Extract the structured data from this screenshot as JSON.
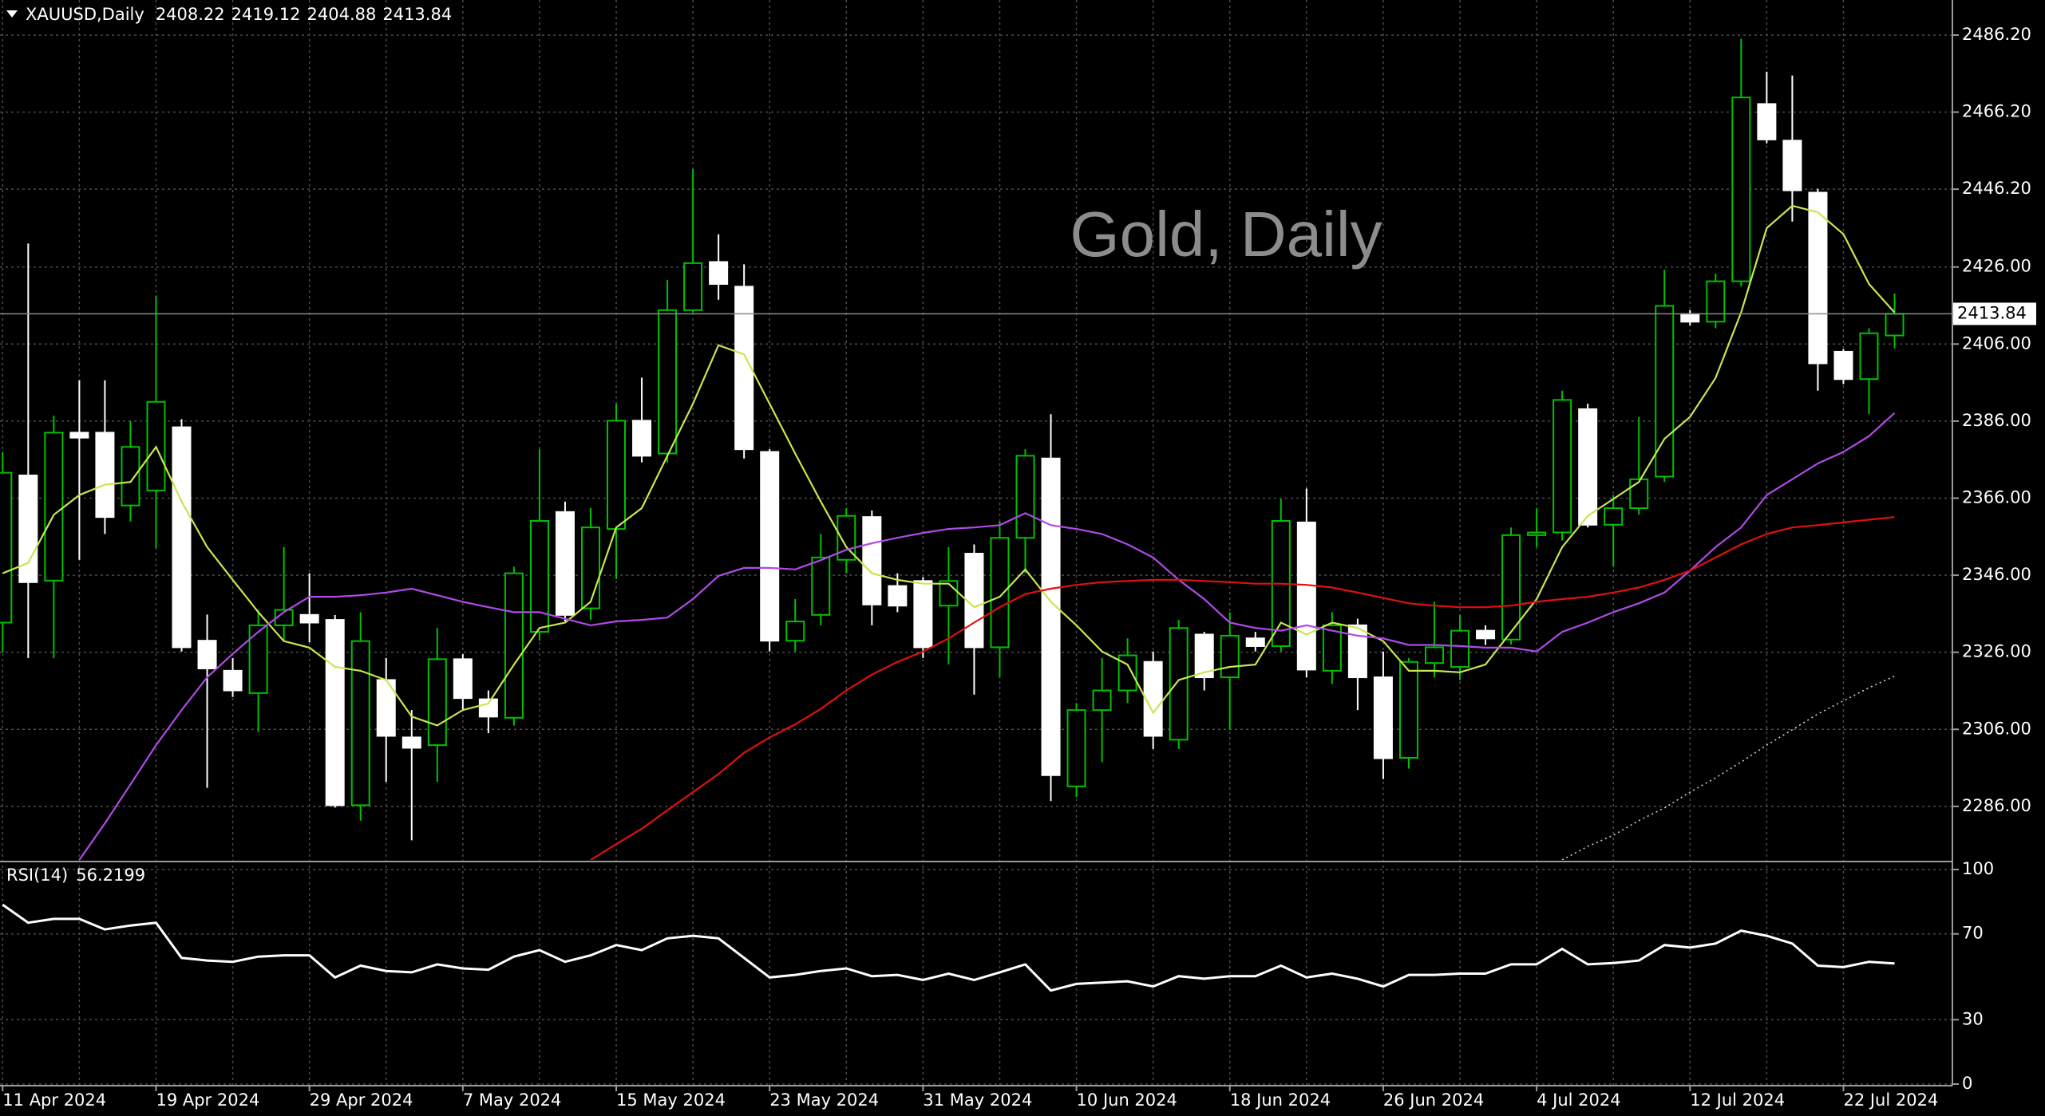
{
  "chart_data": [
    {
      "type": "candlestick",
      "symbol": "XAUUSD,Daily",
      "watermark": "Gold, Daily",
      "categories": [
        "11 Apr 2024",
        null,
        null,
        null,
        null,
        null,
        "19 Apr 2024",
        null,
        null,
        null,
        null,
        null,
        "29 Apr 2024",
        null,
        null,
        null,
        null,
        null,
        "7 May 2024",
        null,
        null,
        null,
        null,
        null,
        "15 May 2024",
        null,
        null,
        null,
        null,
        null,
        "23 May 2024",
        null,
        null,
        null,
        null,
        null,
        "31 May 2024",
        null,
        null,
        null,
        null,
        null,
        "10 Jun 2024",
        null,
        null,
        null,
        null,
        null,
        "18 Jun 2024",
        null,
        null,
        null,
        null,
        null,
        "26 Jun 2024",
        null,
        null,
        null,
        null,
        null,
        "4 Jul 2024",
        null,
        null,
        null,
        null,
        null,
        "12 Jul 2024",
        null,
        null,
        null,
        null,
        null,
        "22 Jul 2024",
        null,
        null
      ],
      "open": [
        2333.7,
        2371.9,
        2344.6,
        2383,
        2383,
        2364.1,
        2368,
        2384.4,
        2329,
        2321.2,
        2315.4,
        2333,
        2335.7,
        2334.4,
        2286.3,
        2318.8,
        2303.9,
        2301.9,
        2324.2,
        2313.8,
        2309,
        2331.3,
        2362.4,
        2337.4,
        2358,
        2386.1,
        2377.6,
        2414.8,
        2427.3,
        2420.9,
        2378,
        2329,
        2335.7,
        2350,
        2361.1,
        2343.2,
        2344.5,
        2338.1,
        2351.6,
        2327.3,
        2355.7,
        2376.3,
        2291.2,
        2311,
        2316.1,
        2323.5,
        2303.3,
        2330.6,
        2319.5,
        2329.6,
        2327.6,
        2359.7,
        2321.2,
        2333,
        2319.5,
        2298.6,
        2323.2,
        2322.2,
        2331.6,
        2329.3,
        2356.4,
        2357.1,
        2389.1,
        2359.1,
        2363.4,
        2371.6,
        2413.8,
        2411.8,
        2422.3,
        2468.3,
        2458.8,
        2445.3,
        2404,
        2396.9,
        2408.22
      ],
      "high": [
        2378,
        2432.1,
        2387.4,
        2396.6,
        2396.6,
        2386,
        2418.6,
        2386.5,
        2335.8,
        2324.5,
        2337,
        2353.3,
        2346.5,
        2335.7,
        2336.4,
        2324.5,
        2311,
        2332.3,
        2325.5,
        2316.1,
        2348.2,
        2378.7,
        2365.1,
        2363.4,
        2390.5,
        2397.3,
        2422.6,
        2451.4,
        2434.5,
        2426.7,
        2378.7,
        2339.8,
        2356.7,
        2363.4,
        2362.8,
        2346.5,
        2345.5,
        2353.3,
        2354,
        2360,
        2378.7,
        2387.8,
        2312.8,
        2324.5,
        2329.6,
        2326.2,
        2334.4,
        2331.3,
        2336.4,
        2331.3,
        2365.8,
        2368.5,
        2336.4,
        2334.7,
        2326.2,
        2324.5,
        2339.1,
        2335.7,
        2333,
        2358.4,
        2363.4,
        2393.9,
        2390.5,
        2366.8,
        2387.1,
        2425.3,
        2414.8,
        2424.3,
        2485.2,
        2476.7,
        2475.7,
        2446.3,
        2404.7,
        2410.1,
        2419.12
      ],
      "low": [
        2326,
        2324.5,
        2324.5,
        2350,
        2356.7,
        2360,
        2353,
        2326.2,
        2290.8,
        2314.4,
        2305.3,
        2329,
        2328.6,
        2285.7,
        2282.3,
        2292.4,
        2277.2,
        2292.4,
        2311,
        2305,
        2307,
        2329,
        2334,
        2334.4,
        2345,
        2375.3,
        2375.3,
        2414.2,
        2417.5,
        2376.3,
        2326.2,
        2326.2,
        2333,
        2346.5,
        2333,
        2336.4,
        2324.5,
        2322.9,
        2315,
        2319.5,
        2346.5,
        2287.4,
        2288.4,
        2297.5,
        2312.8,
        2300.9,
        2300.9,
        2316.1,
        2305.9,
        2326.2,
        2326.2,
        2319.5,
        2317.8,
        2311,
        2293.1,
        2295.8,
        2319.5,
        2318.8,
        2327.9,
        2328,
        2353.3,
        2355,
        2358.4,
        2348.2,
        2361.7,
        2370.2,
        2410.8,
        2410.1,
        2420.9,
        2458.1,
        2437.8,
        2393.9,
        2395.6,
        2387.8,
        2404.88
      ],
      "close": [
        2372.6,
        2344.2,
        2383,
        2381.7,
        2361.1,
        2379.3,
        2391,
        2327.3,
        2321.8,
        2316.1,
        2333,
        2337,
        2333.7,
        2286.3,
        2328.9,
        2304.3,
        2301.2,
        2324.2,
        2314.1,
        2309.3,
        2346.5,
        2360.1,
        2335.7,
        2358.4,
        2386.1,
        2377,
        2414.8,
        2427,
        2421.6,
        2378.7,
        2329,
        2334,
        2350.6,
        2361.4,
        2338.4,
        2338.1,
        2327.3,
        2344.5,
        2327.3,
        2355.7,
        2377,
        2294.1,
        2311,
        2316.1,
        2325.2,
        2304.3,
        2332.3,
        2319.5,
        2330.3,
        2327.6,
        2360.1,
        2321.5,
        2333,
        2319.5,
        2298.5,
        2323.5,
        2327.3,
        2331.6,
        2329.6,
        2356.4,
        2357.1,
        2391.5,
        2359.1,
        2363.4,
        2370.9,
        2415.9,
        2411.8,
        2422.3,
        2470,
        2459.1,
        2445.9,
        2401,
        2396.9,
        2408.8,
        2413.84
      ],
      "up_color": "#00c000",
      "down_color": "#ffffff",
      "ylim": [
        2272.1,
        2495.3
      ],
      "yticks": [
        {
          "value": 2286,
          "label": "2286.00"
        },
        {
          "value": 2306,
          "label": "2306.00"
        },
        {
          "value": 2326,
          "label": "2326.00"
        },
        {
          "value": 2346,
          "label": "2346.00"
        },
        {
          "value": 2366,
          "label": "2366.00"
        },
        {
          "value": 2386,
          "label": "2386.00"
        },
        {
          "value": 2406,
          "label": "2406.00"
        },
        {
          "value": 2426,
          "label": "2426.00"
        },
        {
          "value": 2446.2,
          "label": "2446.20"
        },
        {
          "value": 2466.2,
          "label": "2466.20"
        },
        {
          "value": 2486.2,
          "label": "2486.20"
        }
      ],
      "grid": true,
      "lines": [
        {
          "color": "#c8e650",
          "dashed": false,
          "values": [
            2346.5,
            2349.2,
            2361.7,
            2366.8,
            2369.5,
            2370.2,
            2379.3,
            2365.1,
            2353.3,
            2344.8,
            2336.4,
            2328.9,
            2327.2,
            2322.2,
            2321.2,
            2318.8,
            2309.3,
            2307.0,
            2311.0,
            2312.7,
            2322.8,
            2332.3,
            2333.7,
            2339.1,
            2358.4,
            2363.4,
            2377.0,
            2390.5,
            2405.7,
            2403.3,
            2390.5,
            2377.6,
            2365.1,
            2353.3,
            2346.5,
            2344.8,
            2343.8,
            2343.8,
            2337.7,
            2340.4,
            2347.5,
            2339.1,
            2333.0,
            2326.2,
            2322.8,
            2310.3,
            2318.8,
            2320.8,
            2322.2,
            2322.8,
            2333.7,
            2330.6,
            2333.7,
            2332.3,
            2328.9,
            2321.2,
            2321.2,
            2320.8,
            2322.8,
            2331.3,
            2339.8,
            2353.3,
            2361.4,
            2365.8,
            2370.2,
            2381.4,
            2387.1,
            2397.2,
            2414.2,
            2436.1,
            2441.9,
            2440.2,
            2434.5,
            2421.6,
            2414.2
          ]
        },
        {
          "color": "#b04ae8",
          "dashed": false,
          "values": [
            null,
            null,
            null,
            2272.1,
            2281.6,
            2291.7,
            2301.9,
            2311.0,
            2319.5,
            2325.6,
            2331.3,
            2336.4,
            2340.4,
            2340.4,
            2340.8,
            2341.5,
            2342.5,
            2340.8,
            2339.1,
            2337.7,
            2336.4,
            2336.4,
            2334.7,
            2333.0,
            2334.0,
            2334.4,
            2335.0,
            2339.8,
            2345.8,
            2347.9,
            2347.9,
            2347.5,
            2349.9,
            2352.6,
            2354.3,
            2355.7,
            2357.0,
            2358.0,
            2358.4,
            2359.0,
            2362.1,
            2359.0,
            2358.0,
            2356.7,
            2354.0,
            2350.6,
            2344.8,
            2339.8,
            2333.7,
            2332.3,
            2331.6,
            2333.0,
            2331.6,
            2330.3,
            2329.6,
            2327.9,
            2327.9,
            2327.6,
            2327.2,
            2327.2,
            2326.2,
            2331.3,
            2333.7,
            2336.4,
            2338.7,
            2341.5,
            2347.2,
            2353.3,
            2358.4,
            2366.8,
            2370.9,
            2375.0,
            2378.0,
            2382.1,
            2388.1
          ]
        },
        {
          "color": "#e01010",
          "dashed": false,
          "values": [
            null,
            null,
            null,
            null,
            null,
            null,
            null,
            null,
            null,
            null,
            null,
            null,
            null,
            null,
            null,
            null,
            null,
            null,
            null,
            null,
            null,
            null,
            null,
            2272.1,
            2276.2,
            2280.2,
            2285.0,
            2289.7,
            2294.4,
            2299.9,
            2303.9,
            2307.3,
            2311.3,
            2316.1,
            2320.2,
            2323.5,
            2326.2,
            2329.6,
            2333.7,
            2337.7,
            2341.1,
            2342.5,
            2343.5,
            2344.2,
            2344.5,
            2344.8,
            2344.8,
            2344.5,
            2344.2,
            2343.8,
            2343.8,
            2343.5,
            2342.8,
            2341.5,
            2340.1,
            2338.7,
            2338.1,
            2337.7,
            2337.7,
            2338.1,
            2339.1,
            2339.8,
            2340.4,
            2341.5,
            2342.8,
            2344.8,
            2347.2,
            2350.6,
            2354.0,
            2356.7,
            2358.4,
            2359.0,
            2359.7,
            2360.4,
            2361.1
          ]
        },
        {
          "color": "#d0d0d0",
          "dashed": true,
          "values": [
            null,
            null,
            null,
            null,
            null,
            null,
            null,
            null,
            null,
            null,
            null,
            null,
            null,
            null,
            null,
            null,
            null,
            null,
            null,
            null,
            null,
            null,
            null,
            null,
            null,
            null,
            null,
            null,
            null,
            null,
            null,
            null,
            null,
            null,
            null,
            null,
            null,
            null,
            null,
            null,
            null,
            null,
            null,
            null,
            null,
            null,
            null,
            null,
            null,
            null,
            null,
            null,
            null,
            null,
            null,
            null,
            null,
            null,
            null,
            null,
            null,
            2272.1,
            2275.6,
            2278.5,
            2282.3,
            2285.6,
            2289.7,
            2293.4,
            2297.5,
            2301.9,
            2305.9,
            2310.0,
            2313.4,
            2316.8,
            2319.8
          ]
        }
      ]
    },
    {
      "type": "line",
      "label": "RSI(14)",
      "color": "#ffffff",
      "values": [
        83.6,
        75.2,
        77.0,
        77.0,
        72.1,
        73.9,
        75.2,
        58.8,
        57.6,
        57.0,
        59.4,
        60.0,
        60.0,
        49.7,
        55.2,
        52.7,
        52.1,
        55.8,
        53.9,
        53.3,
        59.4,
        62.4,
        57.0,
        60.0,
        64.8,
        62.4,
        67.9,
        69.1,
        67.9,
        58.8,
        49.7,
        50.9,
        52.7,
        53.9,
        50.3,
        50.9,
        48.5,
        51.5,
        48.5,
        52.1,
        55.8,
        43.6,
        46.7,
        47.3,
        47.9,
        45.5,
        50.3,
        49.1,
        50.3,
        50.3,
        55.2,
        49.7,
        51.5,
        49.1,
        45.5,
        50.9,
        50.9,
        51.5,
        51.5,
        55.8,
        55.8,
        63.0,
        55.8,
        56.4,
        57.6,
        64.8,
        63.6,
        65.5,
        71.5,
        69.1,
        65.5,
        55.2,
        54.5,
        57.0,
        56.2199
      ],
      "ylim": [
        0,
        100
      ],
      "yticks": [
        0,
        30,
        70,
        100
      ]
    }
  ]
}
